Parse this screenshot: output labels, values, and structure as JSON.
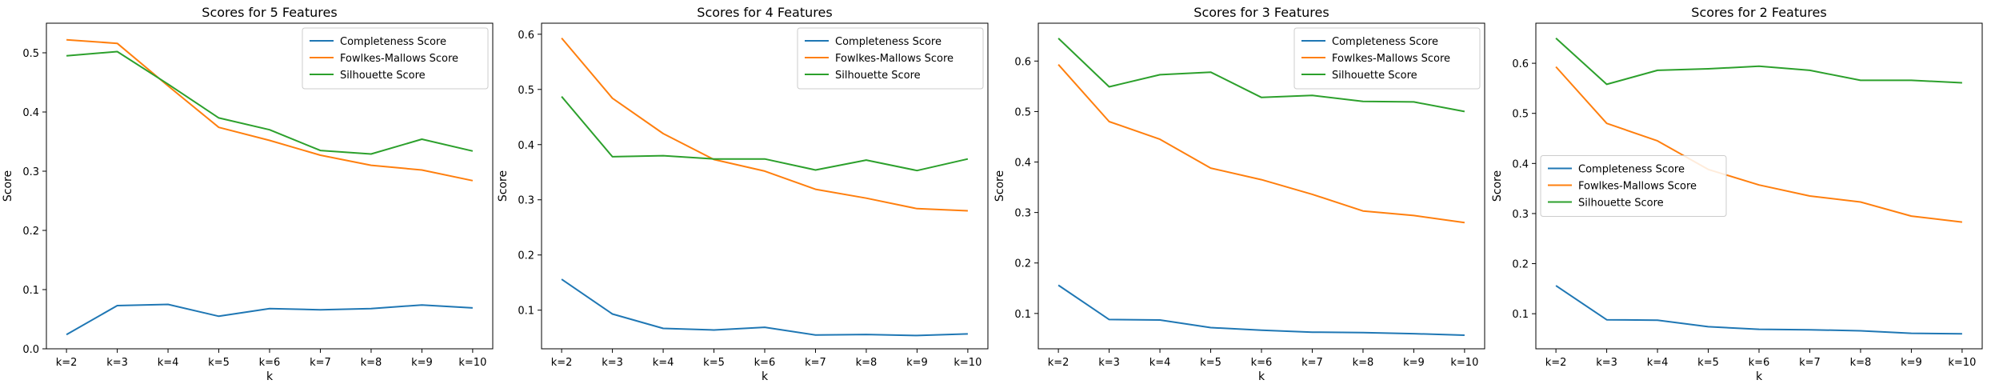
{
  "colors": {
    "Completeness Score": "#1f77b4",
    "Fowlkes-Mallows Score": "#ff7f0e",
    "Silhouette Score": "#2ca02c"
  },
  "chart_data": [
    {
      "type": "line",
      "title": "Scores for 5 Features",
      "xlabel": "k",
      "ylabel": "Score",
      "categories": [
        "k=2",
        "k=3",
        "k=4",
        "k=5",
        "k=6",
        "k=7",
        "k=8",
        "k=9",
        "k=10"
      ],
      "ylim": [
        -0.0,
        0.55
      ],
      "yticks": [
        0.0,
        0.1,
        0.2,
        0.3,
        0.4,
        0.5
      ],
      "ytick_labels": [
        "0.0",
        "0.1",
        "0.2",
        "0.3",
        "0.4",
        "0.5"
      ],
      "legend_loc": "upper right",
      "series": [
        {
          "name": "Completeness Score",
          "values": [
            0.024,
            0.073,
            0.075,
            0.055,
            0.068,
            0.066,
            0.068,
            0.074,
            0.069
          ]
        },
        {
          "name": "Fowlkes-Mallows Score",
          "values": [
            0.522,
            0.516,
            0.444,
            0.374,
            0.352,
            0.327,
            0.31,
            0.302,
            0.284
          ]
        },
        {
          "name": "Silhouette Score",
          "values": [
            0.495,
            0.502,
            0.447,
            0.39,
            0.37,
            0.335,
            0.329,
            0.354,
            0.334
          ]
        }
      ]
    },
    {
      "type": "line",
      "title": "Scores for 4 Features",
      "xlabel": "k",
      "ylabel": "Score",
      "categories": [
        "k=2",
        "k=3",
        "k=4",
        "k=5",
        "k=6",
        "k=7",
        "k=8",
        "k=9",
        "k=10"
      ],
      "ylim": [
        0.03,
        0.62
      ],
      "yticks": [
        0.1,
        0.2,
        0.3,
        0.4,
        0.5,
        0.6
      ],
      "ytick_labels": [
        "0.1",
        "0.2",
        "0.3",
        "0.4",
        "0.5",
        "0.6"
      ],
      "legend_loc": "upper right",
      "series": [
        {
          "name": "Completeness Score",
          "values": [
            0.156,
            0.093,
            0.067,
            0.064,
            0.069,
            0.055,
            0.056,
            0.054,
            0.057
          ]
        },
        {
          "name": "Fowlkes-Mallows Score",
          "values": [
            0.593,
            0.484,
            0.42,
            0.373,
            0.352,
            0.319,
            0.303,
            0.284,
            0.28
          ]
        },
        {
          "name": "Silhouette Score",
          "values": [
            0.487,
            0.378,
            0.38,
            0.374,
            0.374,
            0.354,
            0.372,
            0.353,
            0.374
          ]
        }
      ]
    },
    {
      "type": "line",
      "title": "Scores for 3 Features",
      "xlabel": "k",
      "ylabel": "Score",
      "categories": [
        "k=2",
        "k=3",
        "k=4",
        "k=5",
        "k=6",
        "k=7",
        "k=8",
        "k=9",
        "k=10"
      ],
      "ylim": [
        0.03,
        0.675
      ],
      "yticks": [
        0.1,
        0.2,
        0.3,
        0.4,
        0.5,
        0.6
      ],
      "ytick_labels": [
        "0.1",
        "0.2",
        "0.3",
        "0.4",
        "0.5",
        "0.6"
      ],
      "legend_loc": "upper right",
      "series": [
        {
          "name": "Completeness Score",
          "values": [
            0.156,
            0.088,
            0.087,
            0.072,
            0.067,
            0.063,
            0.062,
            0.06,
            0.057
          ]
        },
        {
          "name": "Fowlkes-Mallows Score",
          "values": [
            0.593,
            0.48,
            0.445,
            0.388,
            0.365,
            0.336,
            0.303,
            0.294,
            0.28
          ]
        },
        {
          "name": "Silhouette Score",
          "values": [
            0.645,
            0.549,
            0.573,
            0.578,
            0.528,
            0.532,
            0.52,
            0.519,
            0.5
          ]
        }
      ]
    },
    {
      "type": "line",
      "title": "Scores for 2 Features",
      "xlabel": "k",
      "ylabel": "Score",
      "categories": [
        "k=2",
        "k=3",
        "k=4",
        "k=5",
        "k=6",
        "k=7",
        "k=8",
        "k=9",
        "k=10"
      ],
      "ylim": [
        0.03,
        0.68
      ],
      "yticks": [
        0.1,
        0.2,
        0.3,
        0.4,
        0.5,
        0.6
      ],
      "ytick_labels": [
        "0.1",
        "0.2",
        "0.3",
        "0.4",
        "0.5",
        "0.6"
      ],
      "legend_loc": "center left",
      "series": [
        {
          "name": "Completeness Score",
          "values": [
            0.156,
            0.088,
            0.087,
            0.074,
            0.069,
            0.068,
            0.066,
            0.061,
            0.06
          ]
        },
        {
          "name": "Fowlkes-Mallows Score",
          "values": [
            0.593,
            0.48,
            0.445,
            0.388,
            0.357,
            0.335,
            0.323,
            0.295,
            0.283
          ]
        },
        {
          "name": "Silhouette Score",
          "values": [
            0.65,
            0.558,
            0.586,
            0.589,
            0.594,
            0.586,
            0.566,
            0.566,
            0.561
          ]
        }
      ]
    }
  ]
}
